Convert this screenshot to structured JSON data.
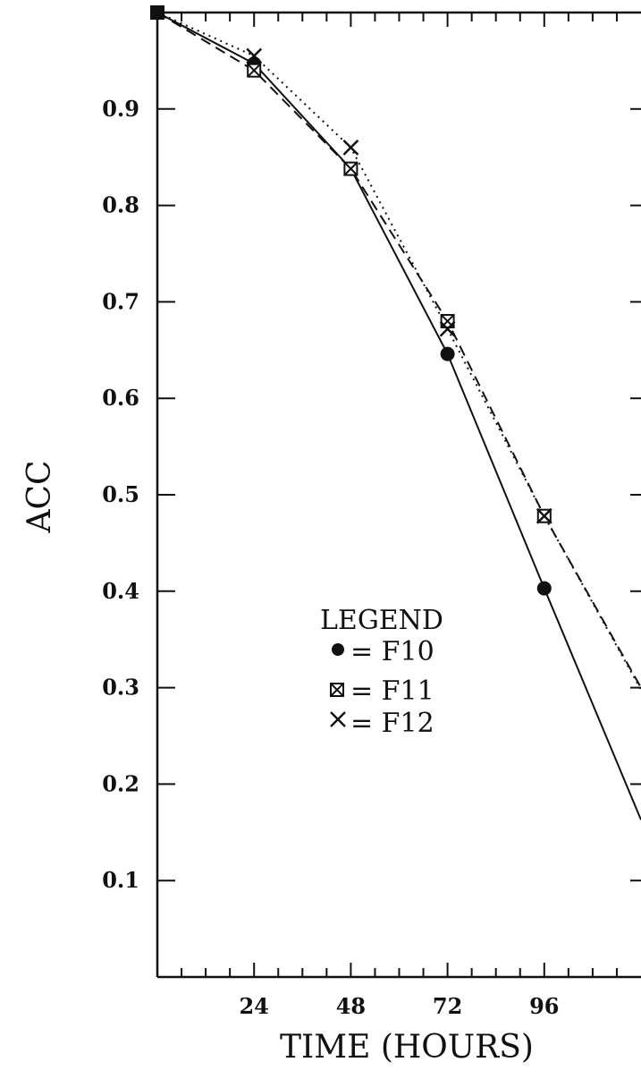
{
  "chart_data": {
    "type": "line",
    "title": "",
    "xlabel": "TIME (HOURS)",
    "ylabel": "ACC",
    "x": [
      0,
      24,
      48,
      72,
      96,
      120
    ],
    "xticks": [
      "24",
      "48",
      "72",
      "96"
    ],
    "yticks": [
      "0.1",
      "0.2",
      "0.3",
      "0.4",
      "0.5",
      "0.6",
      "0.7",
      "0.8",
      "0.9"
    ],
    "xlim": [
      0,
      120
    ],
    "ylim": [
      0,
      1.0
    ],
    "grid": false,
    "legend_position": "center-left",
    "legend": {
      "title": "LEGEND",
      "entries": [
        "= F10",
        "= F11",
        "= F12"
      ]
    },
    "series": [
      {
        "name": "F10",
        "marker": "filled-circle",
        "line": "solid",
        "values": [
          1.0,
          0.947,
          0.838,
          0.646,
          0.403,
          0.163
        ]
      },
      {
        "name": "F11",
        "marker": "boxed-x",
        "line": "dashed",
        "values": [
          1.0,
          0.94,
          0.838,
          0.68,
          0.478,
          0.3
        ]
      },
      {
        "name": "F12",
        "marker": "x",
        "line": "dotted",
        "values": [
          1.0,
          0.955,
          0.86,
          0.672,
          0.478,
          0.298
        ]
      }
    ],
    "colors": {
      "ink": "#111111",
      "background": "#ffffff"
    }
  }
}
